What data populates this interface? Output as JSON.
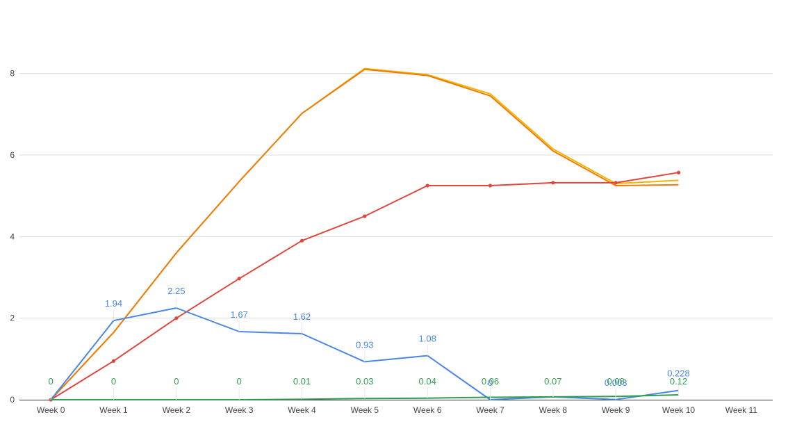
{
  "chart_data": {
    "type": "line",
    "categories": [
      "Week 0",
      "Week 1",
      "Week 2",
      "Week 3",
      "Week 4",
      "Week 5",
      "Week 6",
      "Week 7",
      "Week 8",
      "Week 9",
      "Week 10",
      "Week 11"
    ],
    "ylim": [
      0,
      9
    ],
    "yticks": [
      "0",
      "2",
      "4",
      "6",
      "8"
    ],
    "ytick_values": [
      0,
      2,
      4,
      6,
      8
    ],
    "grid": true,
    "legend": "none",
    "series": [
      {
        "color": "#f4b400",
        "values": [
          0,
          1.65,
          3.6,
          5.35,
          7.02,
          8.12,
          7.97,
          7.5,
          6.15,
          5.3,
          5.38,
          null
        ],
        "markers": false
      },
      {
        "color": "#f07b0a",
        "values": [
          0,
          1.65,
          3.6,
          5.35,
          7.02,
          8.1,
          7.95,
          7.45,
          6.1,
          5.25,
          5.27,
          null
        ],
        "markers": false
      },
      {
        "color": "#e0463c",
        "values": [
          0,
          0.95,
          2.0,
          2.97,
          3.9,
          4.5,
          5.25,
          5.25,
          5.32,
          5.32,
          5.57,
          null
        ],
        "markers": true
      },
      {
        "color": "#4a86e8",
        "values": [
          0,
          1.94,
          2.25,
          1.67,
          1.62,
          0.93,
          1.08,
          0,
          0.07,
          0.003,
          0.228,
          null
        ],
        "markers": false,
        "data_labels": [
          "",
          "1.94",
          "2.25",
          "1.67",
          "1.62",
          "0.93",
          "1.08",
          "0",
          "",
          "0.003",
          "0.228",
          ""
        ]
      },
      {
        "color": "#2f9e4f",
        "values": [
          0,
          0,
          0,
          0,
          0.01,
          0.03,
          0.04,
          0.06,
          0.07,
          0.08,
          0.12,
          null
        ],
        "markers": false,
        "data_labels": [
          "0",
          "0",
          "0",
          "0",
          "0.01",
          "0.03",
          "0.04",
          "0.06",
          "0.07",
          "0.08",
          "0.12",
          ""
        ]
      }
    ]
  }
}
